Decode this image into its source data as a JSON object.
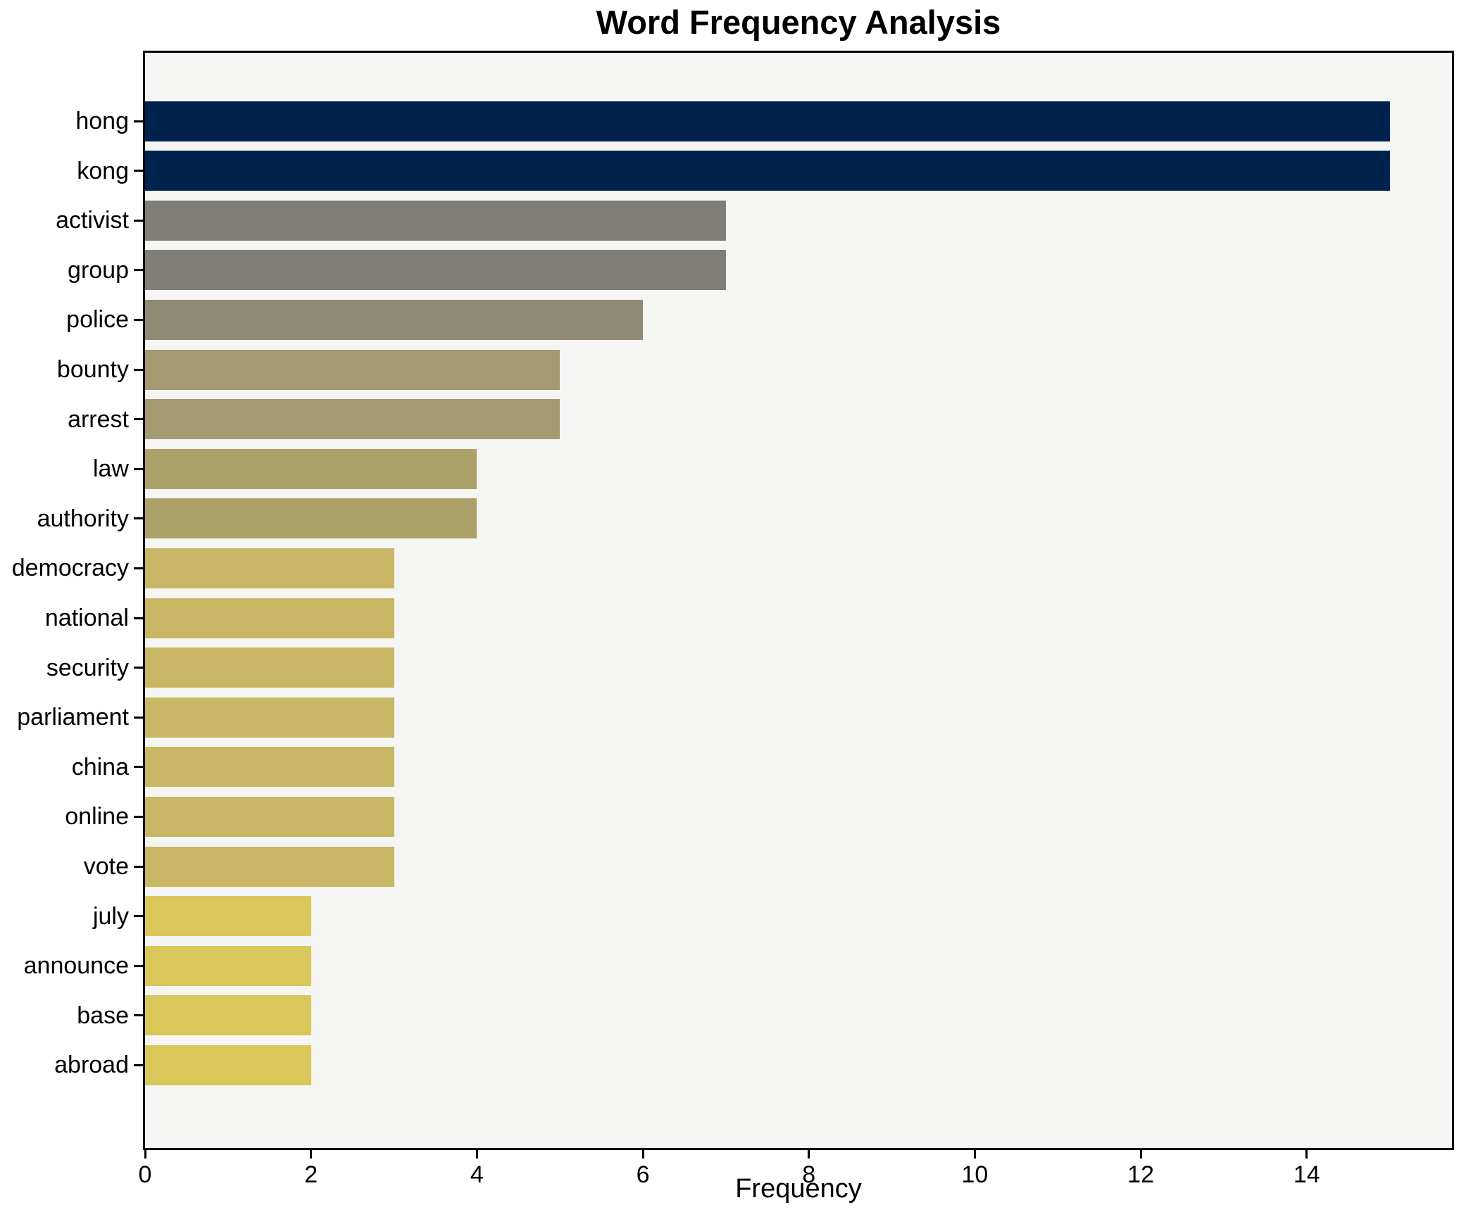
{
  "chart_data": {
    "type": "bar",
    "orientation": "horizontal",
    "title": "Word Frequency Analysis",
    "xlabel": "Frequency",
    "ylabel": "",
    "categories": [
      "hong",
      "kong",
      "activist",
      "group",
      "police",
      "bounty",
      "arrest",
      "law",
      "authority",
      "democracy",
      "national",
      "security",
      "parliament",
      "china",
      "online",
      "vote",
      "july",
      "announce",
      "base",
      "abroad"
    ],
    "values": [
      15,
      15,
      7,
      7,
      6,
      5,
      5,
      4,
      4,
      3,
      3,
      3,
      3,
      3,
      3,
      3,
      2,
      2,
      2,
      2
    ],
    "xlim": [
      0,
      15.75
    ],
    "xticks": [
      0,
      2,
      4,
      6,
      8,
      10,
      12,
      14
    ],
    "grid": false,
    "legend": null,
    "colormap": "cividis",
    "value_colors": {
      "15": "#00234e",
      "7": "#807e78",
      "6": "#8f8a74",
      "5": "#a29a70",
      "4": "#aca168",
      "3": "#c9b665",
      "2": "#d9c75a"
    },
    "plot_background": "#f5f5f4",
    "figure_background": "#ffffff",
    "spine_color": "#000000"
  }
}
